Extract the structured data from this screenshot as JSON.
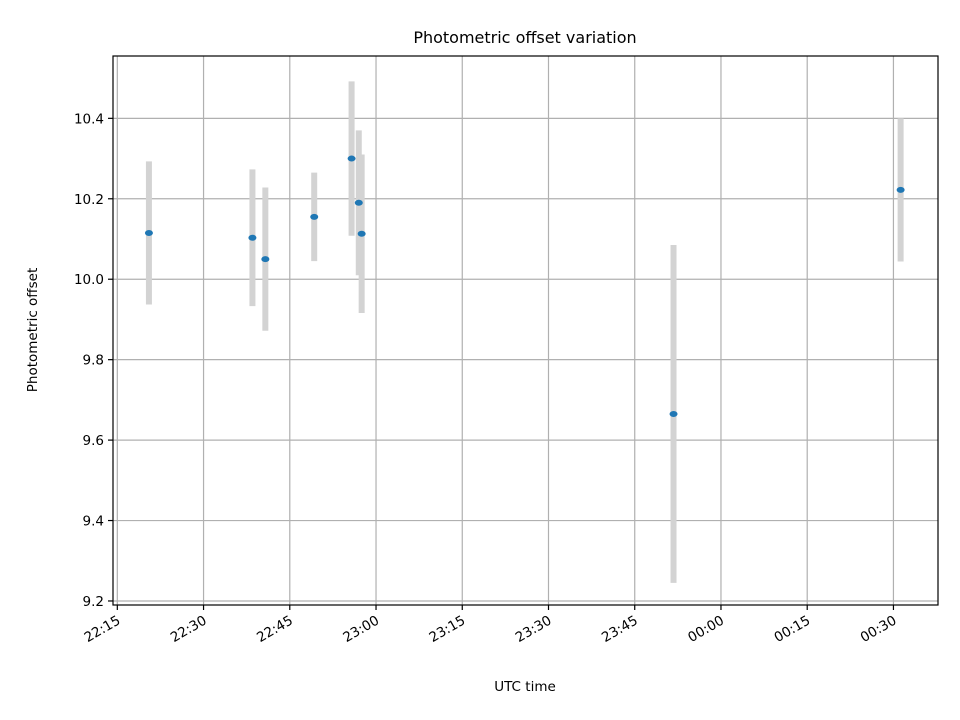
{
  "chart_data": {
    "type": "scatter",
    "title": "Photometric offset variation",
    "xlabel": "UTC time",
    "ylabel": "Photometric offset",
    "x_ticks": [
      "22:15",
      "22:30",
      "22:45",
      "23:00",
      "23:15",
      "23:30",
      "23:45",
      "00:00",
      "00:15",
      "00:30"
    ],
    "y_ticks": [
      "9.2",
      "9.4",
      "9.6",
      "9.8",
      "10.0",
      "10.2",
      "10.4"
    ],
    "xlim": [
      "22:14:15",
      "00:37:45"
    ],
    "ylim": [
      9.19,
      10.555
    ],
    "grid": true,
    "points": [
      {
        "x": "22:20:30",
        "y": 10.115,
        "err": 0.178
      },
      {
        "x": "22:38:30",
        "y": 10.103,
        "err": 0.17
      },
      {
        "x": "22:40:45",
        "y": 10.05,
        "err": 0.178
      },
      {
        "x": "22:49:15",
        "y": 10.155,
        "err": 0.11
      },
      {
        "x": "22:55:45",
        "y": 10.3,
        "err": 0.192
      },
      {
        "x": "22:57:00",
        "y": 10.19,
        "err": 0.18
      },
      {
        "x": "22:57:30",
        "y": 10.113,
        "err": 0.197
      },
      {
        "x": "23:51:45",
        "y": 9.665,
        "err": 0.42
      },
      {
        "x": "00:31:15",
        "y": 10.222,
        "err": 0.178
      }
    ],
    "colors": {
      "marker": "#1f77b4",
      "errorbar": "#d3d3d3",
      "grid": "#b0b0b0",
      "axes": "#000000"
    }
  }
}
